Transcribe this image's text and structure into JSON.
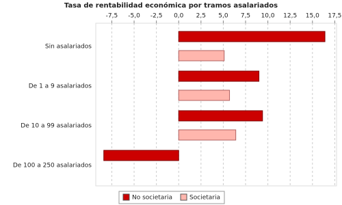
{
  "chart_data": {
    "type": "hbar",
    "title": "Tasa de rentabilidad económica por tramos asalariados",
    "categories": [
      "Sin asalariados",
      "De 1 a 9 asalariados",
      "De 10 a 99 asalariados",
      "De 100 a 250 asalariados"
    ],
    "series": [
      {
        "name": "No societaria",
        "color": "#cc0000",
        "values": [
          16.4,
          9.0,
          9.4,
          -8.4
        ]
      },
      {
        "name": "Societaria",
        "color": "#ffb6ad",
        "values": [
          5.1,
          5.7,
          6.4,
          null
        ]
      }
    ],
    "xlim": [
      -9.3,
      17.7
    ],
    "xticks": [
      {
        "value": -7.5,
        "label": "-7,5"
      },
      {
        "value": -5,
        "label": "-5,0"
      },
      {
        "value": -2.5,
        "label": "-2,5"
      },
      {
        "value": 0,
        "label": "0,0"
      },
      {
        "value": 2.5,
        "label": "2,5"
      },
      {
        "value": 5,
        "label": "5,0"
      },
      {
        "value": 7.5,
        "label": "7,5"
      },
      {
        "value": 10,
        "label": "10,0"
      },
      {
        "value": 12.5,
        "label": "12,5"
      },
      {
        "value": 15,
        "label": "15,0"
      },
      {
        "value": 17.5,
        "label": "17,5"
      }
    ],
    "grid": true
  }
}
